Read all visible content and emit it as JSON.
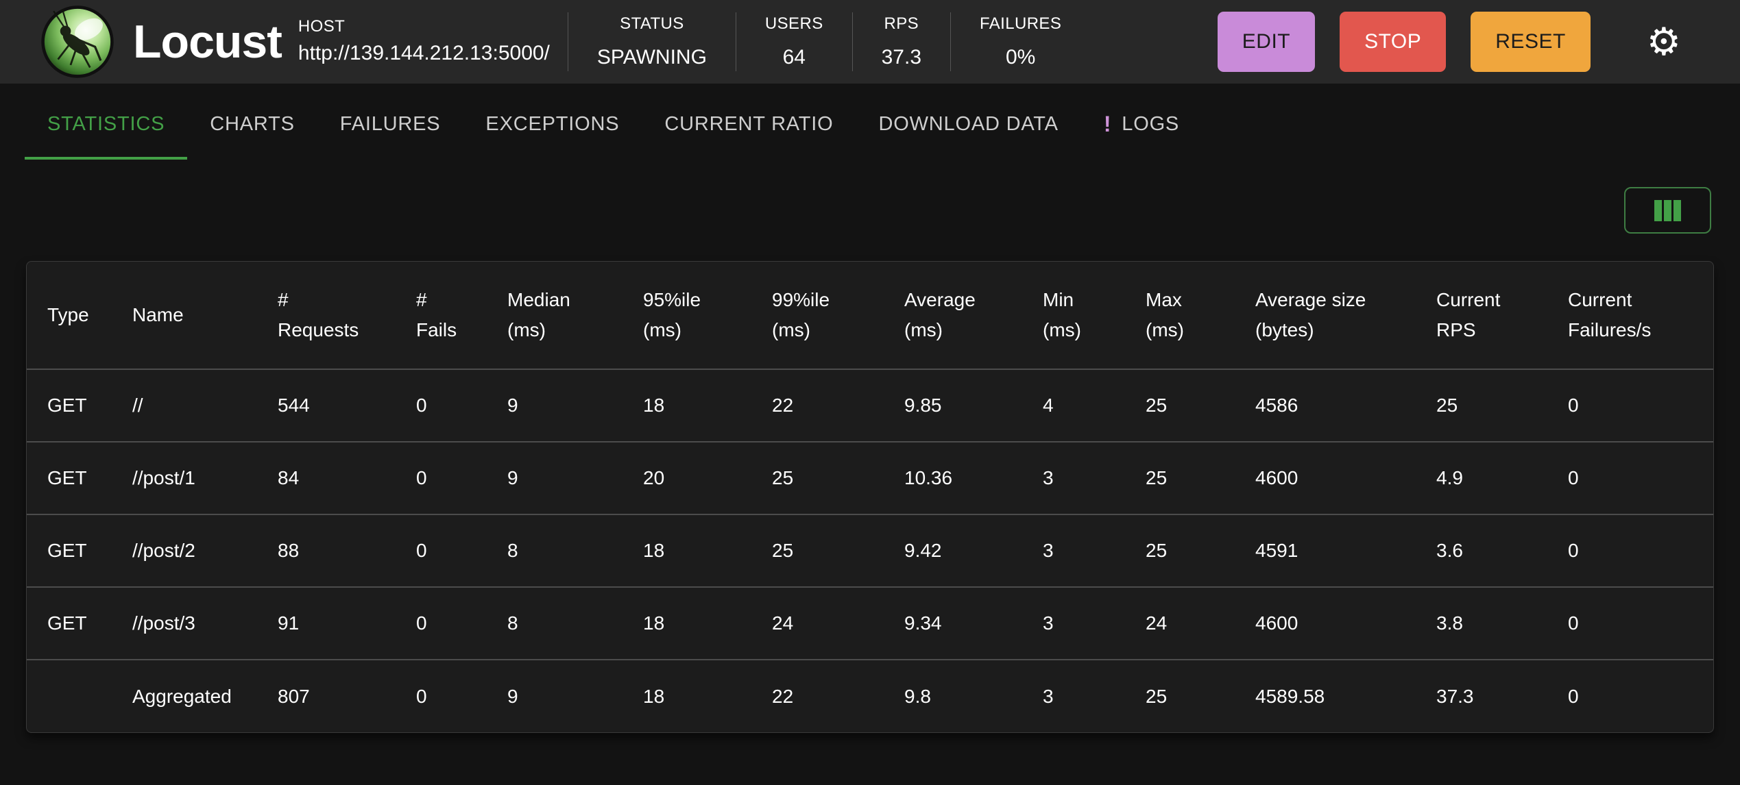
{
  "header": {
    "title": "Locust",
    "host": {
      "label": "HOST",
      "value": "http://139.144.212.13:5000/"
    },
    "stats": [
      {
        "label": "STATUS",
        "value": "SPAWNING"
      },
      {
        "label": "USERS",
        "value": "64"
      },
      {
        "label": "RPS",
        "value": "37.3"
      },
      {
        "label": "FAILURES",
        "value": "0%"
      }
    ],
    "buttons": {
      "edit": "EDIT",
      "stop": "STOP",
      "reset": "RESET"
    },
    "icons": {
      "settings_glyph": "⚙",
      "logo_name": "locust-logo",
      "columns_name": "view-columns-icon"
    }
  },
  "colors": {
    "accent_green": "#43a047",
    "edit_purple": "#c98bd9",
    "stop_red": "#e2574e",
    "reset_orange": "#f0a63d",
    "badge_purple": "#ce93d8",
    "header_bg": "#282828",
    "page_bg": "#131313",
    "table_bg": "#1c1c1c"
  },
  "tabs": {
    "items": [
      {
        "label": "STATISTICS",
        "active": true
      },
      {
        "label": "CHARTS",
        "active": false
      },
      {
        "label": "FAILURES",
        "active": false
      },
      {
        "label": "EXCEPTIONS",
        "active": false
      },
      {
        "label": "CURRENT RATIO",
        "active": false
      },
      {
        "label": "DOWNLOAD DATA",
        "active": false
      },
      {
        "label": "LOGS",
        "active": false,
        "badge": "!"
      }
    ]
  },
  "table": {
    "columns": [
      "Type",
      "Name",
      "#\nRequests",
      "#\nFails",
      "Median\n(ms)",
      "95%ile\n(ms)",
      "99%ile\n(ms)",
      "Average\n(ms)",
      "Min\n(ms)",
      "Max\n(ms)",
      "Average size\n(bytes)",
      "Current\nRPS",
      "Current\nFailures/s"
    ],
    "rows": [
      [
        "GET",
        "//",
        "544",
        "0",
        "9",
        "18",
        "22",
        "9.85",
        "4",
        "25",
        "4586",
        "25",
        "0"
      ],
      [
        "GET",
        "//post/1",
        "84",
        "0",
        "9",
        "20",
        "25",
        "10.36",
        "3",
        "25",
        "4600",
        "4.9",
        "0"
      ],
      [
        "GET",
        "//post/2",
        "88",
        "0",
        "8",
        "18",
        "25",
        "9.42",
        "3",
        "25",
        "4591",
        "3.6",
        "0"
      ],
      [
        "GET",
        "//post/3",
        "91",
        "0",
        "8",
        "18",
        "24",
        "9.34",
        "3",
        "24",
        "4600",
        "3.8",
        "0"
      ],
      [
        "",
        "Aggregated",
        "807",
        "0",
        "9",
        "18",
        "22",
        "9.8",
        "3",
        "25",
        "4589.58",
        "37.3",
        "0"
      ]
    ]
  }
}
